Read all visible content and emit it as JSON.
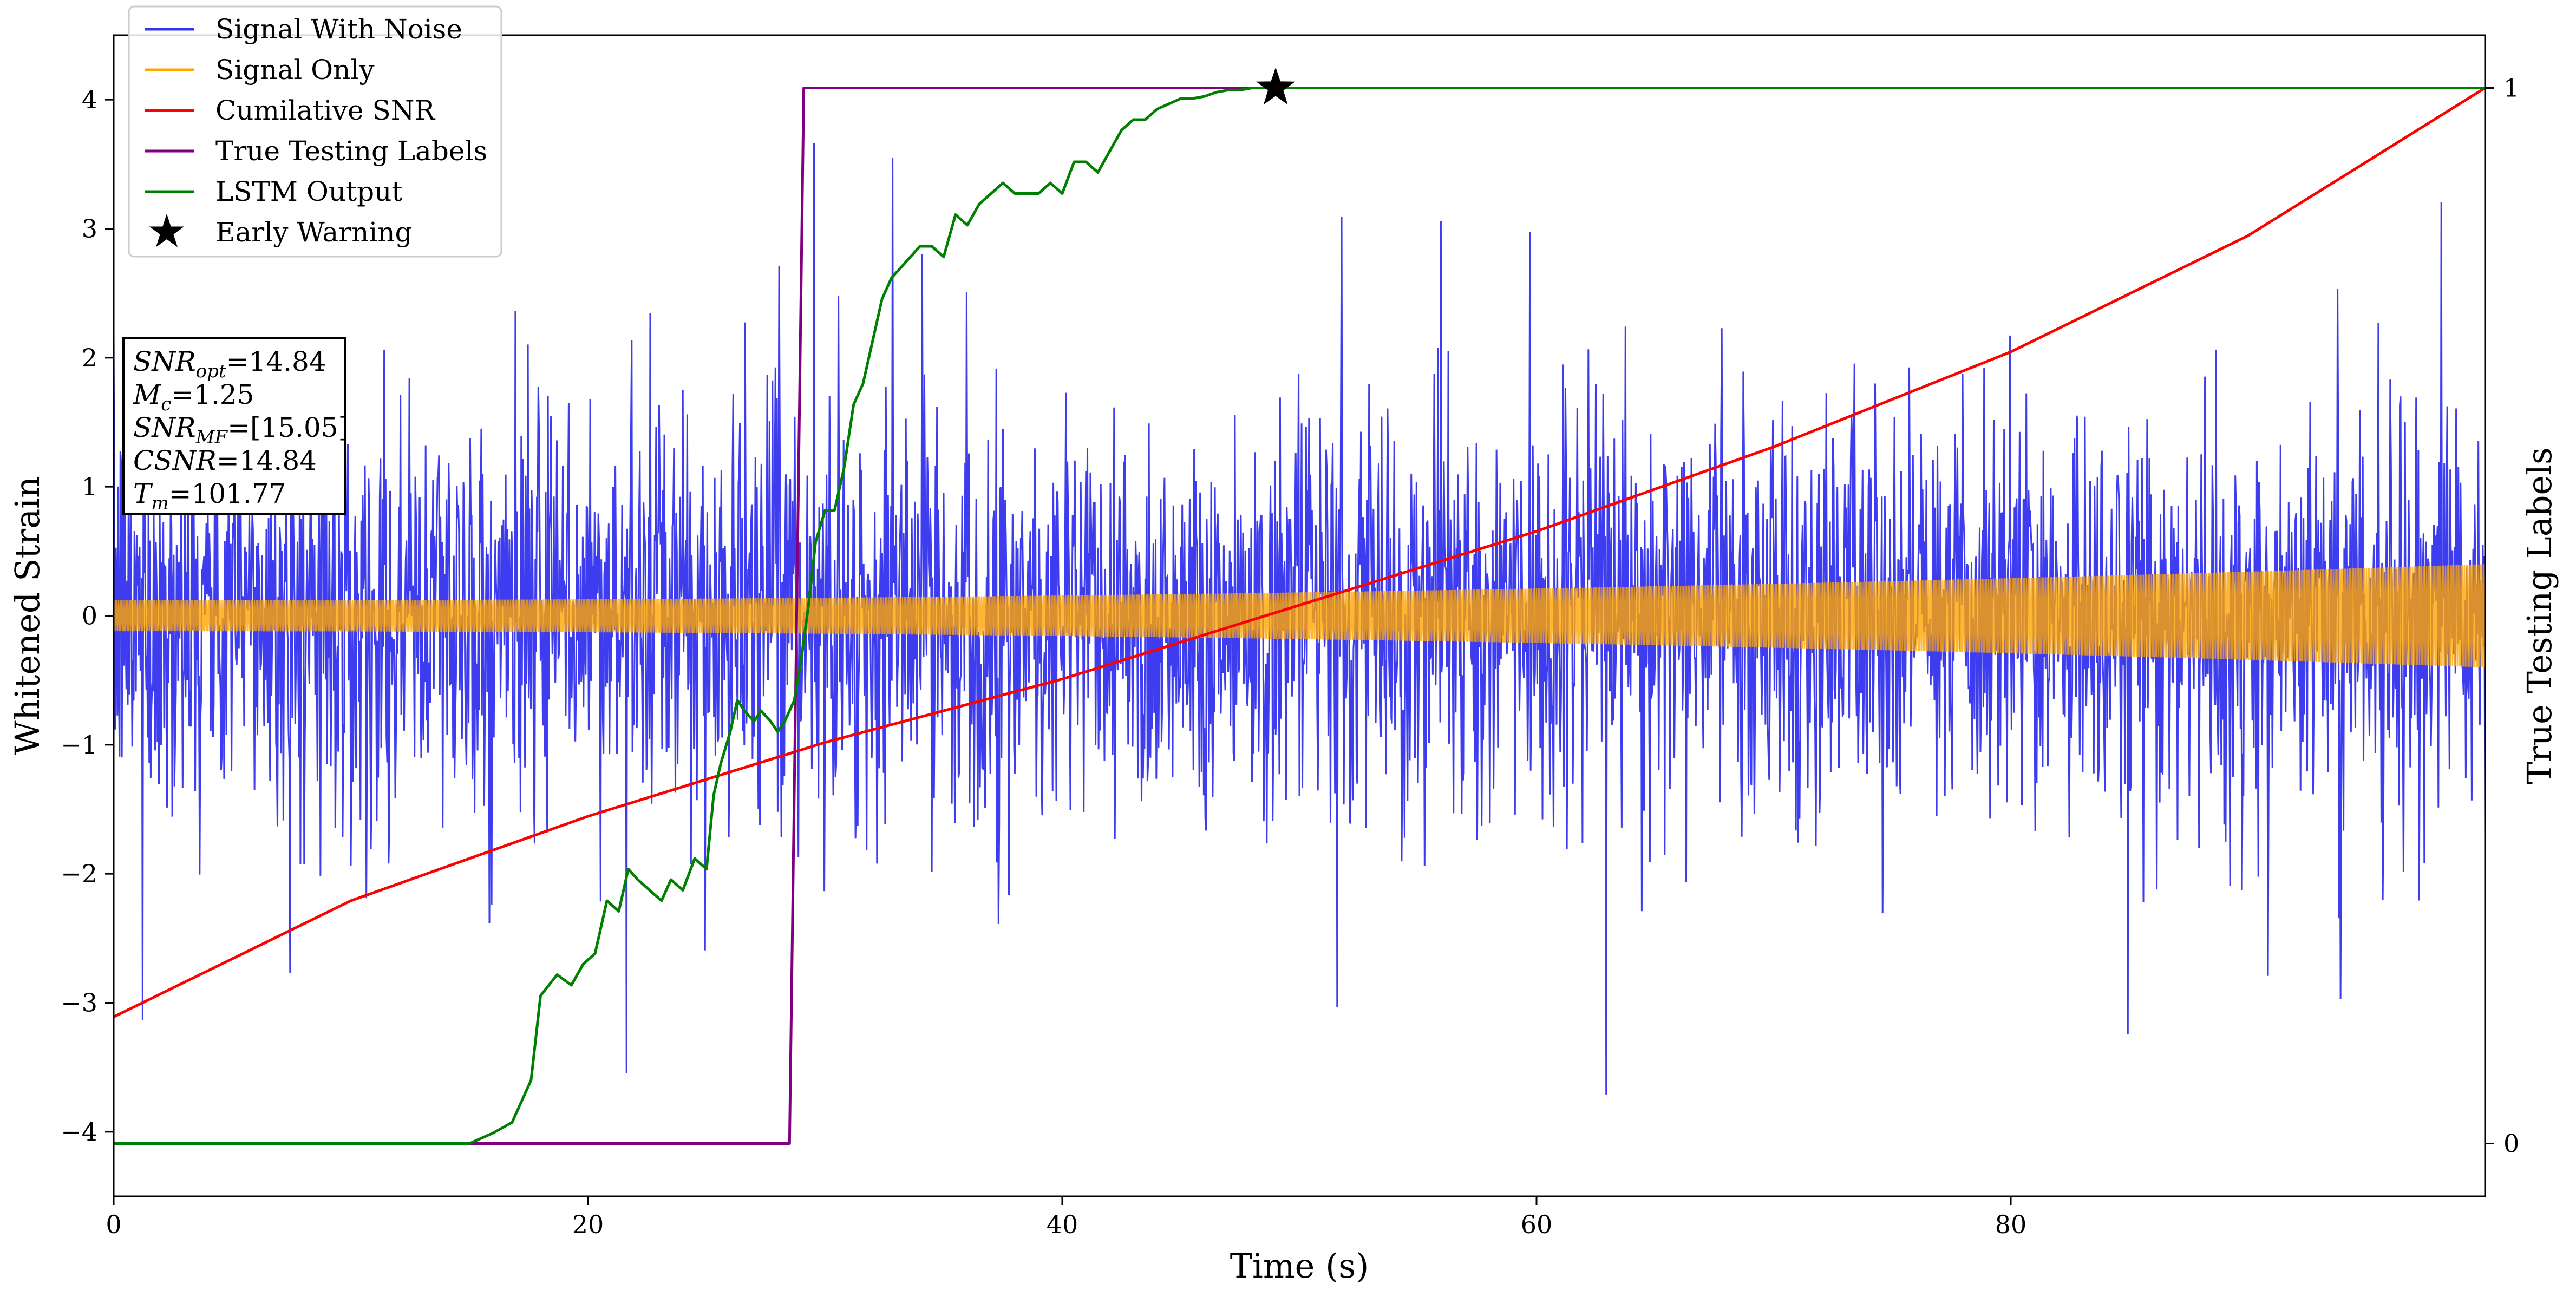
{
  "chart_data": {
    "type": "line",
    "title": "",
    "xlabel": "Time (s)",
    "ylabel": "Whitened Strain",
    "y2label": "True Testing Labels",
    "xlim": [
      0,
      100
    ],
    "ylim": [
      -4.5,
      4.5
    ],
    "y2lim": [
      -0.05,
      1.05
    ],
    "xticks": [
      0,
      20,
      40,
      60,
      80
    ],
    "yticks": [
      -4,
      -3,
      -2,
      -1,
      0,
      1,
      2,
      3,
      4
    ],
    "y2ticks": [
      0,
      1
    ],
    "xtick_labels": [
      "0",
      "20",
      "40",
      "60",
      "80"
    ],
    "ytick_labels": [
      "−4",
      "−3",
      "−2",
      "−1",
      "0",
      "1",
      "2",
      "3",
      "4"
    ],
    "y2tick_labels": [
      "0",
      "1"
    ],
    "grid": false,
    "legend_position": "top-left",
    "series": [
      {
        "name": "Signal With Noise",
        "color": "#3333ee",
        "axis": "left",
        "style": "noise",
        "description_values": {
          "typical_range": [
            -1.5,
            1.5
          ],
          "extreme_range": [
            -4.05,
            3.7
          ]
        }
      },
      {
        "name": "Signal Only",
        "color": "#ffa500",
        "axis": "left",
        "style": "oscillation",
        "amplitude_start": 0.12,
        "amplitude_end": 0.4
      },
      {
        "name": "Cumilative SNR",
        "color": "#ff0000",
        "axis": "right",
        "x": [
          0,
          10,
          20,
          30,
          40,
          50,
          60,
          70,
          80,
          90,
          100
        ],
        "values": [
          0.12,
          0.23,
          0.31,
          0.38,
          0.44,
          0.51,
          0.58,
          0.66,
          0.75,
          0.86,
          1.0
        ]
      },
      {
        "name": "True Testing Labels",
        "color": "#800080",
        "axis": "right",
        "x": [
          0,
          28.5,
          29.1,
          49,
          49.2
        ],
        "values": [
          0,
          0,
          1,
          1,
          1
        ]
      },
      {
        "name": "LSTM Output",
        "color": "#008000",
        "axis": "right",
        "x": [
          0,
          15,
          16,
          16.8,
          17.6,
          18,
          18.7,
          19.3,
          19.8,
          20.3,
          20.8,
          21.3,
          21.7,
          22.1,
          22.6,
          23.1,
          23.5,
          24,
          24.5,
          25,
          25.3,
          25.6,
          26,
          26.3,
          26.6,
          27,
          27.3,
          27.7,
          28,
          28.3,
          28.7,
          29,
          29.3,
          29.6,
          30,
          30.4,
          30.8,
          31.2,
          31.6,
          32,
          32.4,
          32.8,
          33.2,
          33.6,
          34,
          34.5,
          35,
          35.5,
          36,
          36.5,
          37,
          37.5,
          38,
          38.5,
          39,
          39.5,
          40,
          40.5,
          41,
          41.5,
          42,
          42.5,
          43,
          43.5,
          44,
          44.5,
          45,
          45.5,
          46,
          46.5,
          47,
          47.5,
          48,
          48.5,
          49,
          50,
          60,
          70,
          80,
          90,
          100
        ],
        "values": [
          0,
          0,
          0.01,
          0.02,
          0.06,
          0.14,
          0.16,
          0.15,
          0.17,
          0.18,
          0.23,
          0.22,
          0.26,
          0.25,
          0.24,
          0.23,
          0.25,
          0.24,
          0.27,
          0.26,
          0.33,
          0.36,
          0.39,
          0.42,
          0.41,
          0.4,
          0.41,
          0.4,
          0.39,
          0.4,
          0.42,
          0.46,
          0.51,
          0.57,
          0.6,
          0.6,
          0.64,
          0.7,
          0.72,
          0.76,
          0.8,
          0.82,
          0.83,
          0.84,
          0.85,
          0.85,
          0.84,
          0.88,
          0.87,
          0.89,
          0.9,
          0.91,
          0.9,
          0.9,
          0.9,
          0.91,
          0.9,
          0.93,
          0.93,
          0.92,
          0.94,
          0.96,
          0.97,
          0.97,
          0.98,
          0.985,
          0.99,
          0.99,
          0.992,
          0.996,
          0.998,
          0.998,
          1.0,
          1.0,
          1.0,
          1.0,
          1.0,
          1.0,
          1.0,
          1.0,
          1.0
        ]
      },
      {
        "name": "Early Warning",
        "color": "#000000",
        "axis": "right",
        "marker": "star",
        "x": [
          49
        ],
        "values": [
          1.0
        ]
      }
    ],
    "annotation_box": {
      "lines": [
        {
          "italic": "SNR",
          "sub": "opt",
          "rest": "=14.84"
        },
        {
          "italic": "M",
          "sub": "c",
          "rest": "=1.25"
        },
        {
          "italic": "SNR",
          "sub": "MF",
          "rest": "=[15.05]"
        },
        {
          "italic": "CSNR",
          "sub": "",
          "rest": "=14.84"
        },
        {
          "italic": "T",
          "sub": "m",
          "rest": "=101.77"
        }
      ]
    }
  }
}
